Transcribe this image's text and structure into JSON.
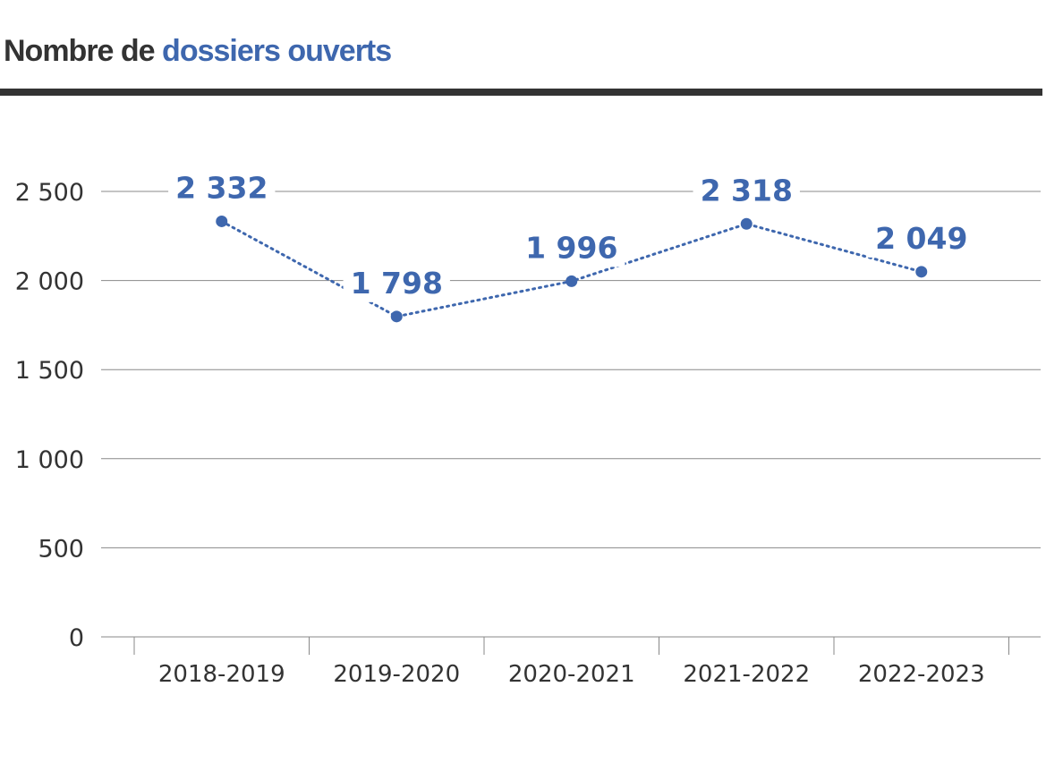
{
  "title": {
    "prefix": "Nombre de",
    "highlight": "dossiers ouverts"
  },
  "colors": {
    "accent": "#3e67ae",
    "text": "#333333",
    "grid": "#888888"
  },
  "chart_data": {
    "type": "line",
    "title": "Nombre de dossiers ouverts",
    "categories": [
      "2018-2019",
      "2019-2020",
      "2020-2021",
      "2021-2022",
      "2022-2023"
    ],
    "series": [
      {
        "values": [
          2332,
          1798,
          1996,
          2318,
          2049
        ],
        "labels": [
          "2 332",
          "1 798",
          "1 996",
          "2 318",
          "2 049"
        ],
        "line_style": "dotted",
        "markers": true
      }
    ],
    "yticks": [
      0,
      500,
      1000,
      1500,
      2000,
      2500
    ],
    "ytick_labels": [
      "0",
      "500",
      "1 000",
      "1 500",
      "2 000",
      "2 500"
    ],
    "ylim": [
      0,
      2500
    ],
    "xlabel": "",
    "ylabel": "",
    "grid": true
  }
}
